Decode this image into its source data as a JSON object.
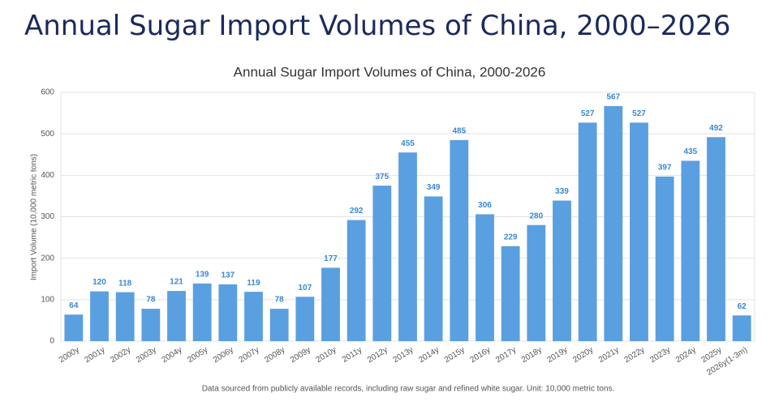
{
  "header": {
    "title": "Annual Sugar Import Volumes of China, 2000–2026"
  },
  "chart_data": {
    "type": "bar",
    "title": "Annual Sugar Import Volumes of China, 2000-2026",
    "y_label": "Import Volume (10,000 metric tons)",
    "note": "Data sourced from publicly available records, including raw sugar and refined white sugar. Unit: 10,000 metric tons.",
    "categories": [
      "2000y",
      "2001y",
      "2002y",
      "2003y",
      "2004y",
      "2005y",
      "2006y",
      "2007y",
      "2008y",
      "2009y",
      "2010y",
      "2011y",
      "2012y",
      "2013y",
      "2014y",
      "2015y",
      "2016y",
      "2017y",
      "2018y",
      "2019y",
      "2020y",
      "2021y",
      "2022y",
      "2023y",
      "2024y",
      "2025y",
      "2026y(1-3m)"
    ],
    "values": [
      64,
      120,
      118,
      78,
      121,
      139,
      137,
      119,
      78,
      107,
      177,
      292,
      375,
      455,
      349,
      485,
      306,
      229,
      280,
      339,
      527,
      567,
      527,
      397,
      435,
      492,
      62
    ],
    "color": "#5a9fe0",
    "ylim": [
      0,
      600
    ],
    "yticks": [
      0,
      100,
      200,
      300,
      400,
      500,
      600
    ],
    "grid": true
  }
}
